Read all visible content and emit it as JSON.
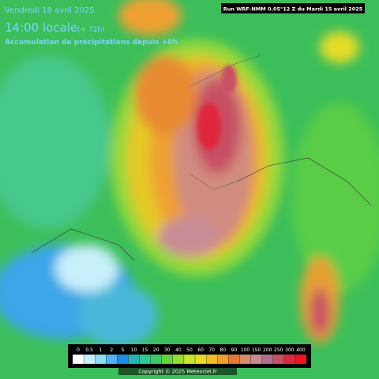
{
  "header": {
    "date": "Vendredi 18 avril 2025",
    "time": "14:00 locale",
    "lead": "(+ 72h)",
    "subtitle": "Accumulation de précipitations depuis +0h",
    "run": "Run WRF-NMM 0.05°12 Z du Mardi 15 avril 2025"
  },
  "legend": {
    "ticks": [
      0,
      0.5,
      1,
      2,
      5,
      10,
      15,
      20,
      30,
      40,
      50,
      60,
      70,
      80,
      90,
      100,
      150,
      200,
      250,
      300,
      400
    ],
    "colors": [
      "#ffffff",
      "#c8f0fa",
      "#8cdcf5",
      "#50b4f0",
      "#1e8ce6",
      "#28b4b4",
      "#32c896",
      "#3cc864",
      "#64d23c",
      "#96dc32",
      "#c8e628",
      "#e6dc28",
      "#f0be28",
      "#f0a032",
      "#e67832",
      "#d78c6e",
      "#c88c96",
      "#b46e8c",
      "#c85064",
      "#dc283c",
      "#f0141e"
    ]
  },
  "copyright": "Copyright © 2025 Meteociel.fr"
}
